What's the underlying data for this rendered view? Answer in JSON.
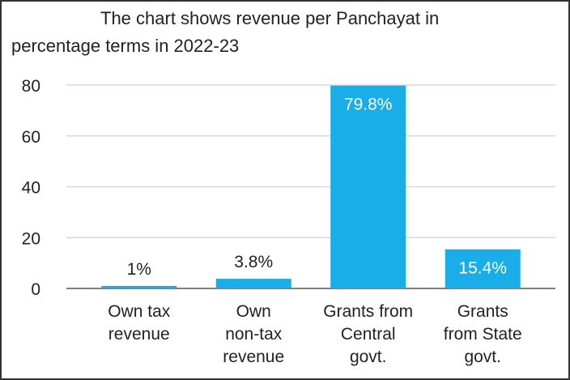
{
  "chart_data": {
    "type": "bar",
    "title_line1": "The chart shows revenue per Panchayat in",
    "title_line2": "percentage terms in 2022-23",
    "categories": [
      [
        "Own tax",
        "revenue"
      ],
      [
        "Own",
        "non-tax",
        "revenue"
      ],
      [
        "Grants from",
        "Central",
        "govt."
      ],
      [
        "Grants",
        "from State",
        "govt."
      ]
    ],
    "values": [
      1,
      3.8,
      79.8,
      15.4
    ],
    "data_labels": [
      "1%",
      "3.8%",
      "79.8%",
      "15.4%"
    ],
    "yticks": [
      0,
      20,
      40,
      60,
      80
    ],
    "ylim": [
      0,
      80
    ],
    "grid": true,
    "bar_color": "#1aaee8",
    "grid_color": "#d8d8d8"
  }
}
